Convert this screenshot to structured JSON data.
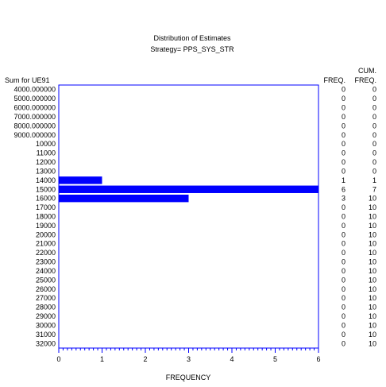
{
  "chart_data": {
    "type": "bar",
    "orientation": "horizontal",
    "title": "Distribution  of  Estimates",
    "subtitle": "Strategy= PPS_SYS_STR",
    "ylabel": "Sum  for  UE91",
    "xlabel": "FREQUENCY",
    "freq_header": "FREQ.",
    "cum_header_line1": "CUM.",
    "cum_header_line2": "FREQ.",
    "xlim": [
      0,
      6
    ],
    "xticks": [
      "0",
      "1",
      "2",
      "3",
      "4",
      "5",
      "6"
    ],
    "categories": [
      "4000.000000",
      "5000.000000",
      "6000.000000",
      "7000.000000",
      "8000.000000",
      "9000.000000",
      "10000",
      "11000",
      "12000",
      "13000",
      "14000",
      "15000",
      "16000",
      "17000",
      "18000",
      "19000",
      "20000",
      "21000",
      "22000",
      "23000",
      "24000",
      "25000",
      "26000",
      "27000",
      "28000",
      "29000",
      "30000",
      "31000",
      "32000"
    ],
    "freq": [
      0,
      0,
      0,
      0,
      0,
      0,
      0,
      0,
      0,
      0,
      1,
      6,
      3,
      0,
      0,
      0,
      0,
      0,
      0,
      0,
      0,
      0,
      0,
      0,
      0,
      0,
      0,
      0,
      0
    ],
    "cum_freq": [
      0,
      0,
      0,
      0,
      0,
      0,
      0,
      0,
      0,
      0,
      1,
      7,
      10,
      10,
      10,
      10,
      10,
      10,
      10,
      10,
      10,
      10,
      10,
      10,
      10,
      10,
      10,
      10,
      10
    ],
    "bar_color": "#0000ff",
    "frame_color": "#0000ff",
    "grid": false
  }
}
